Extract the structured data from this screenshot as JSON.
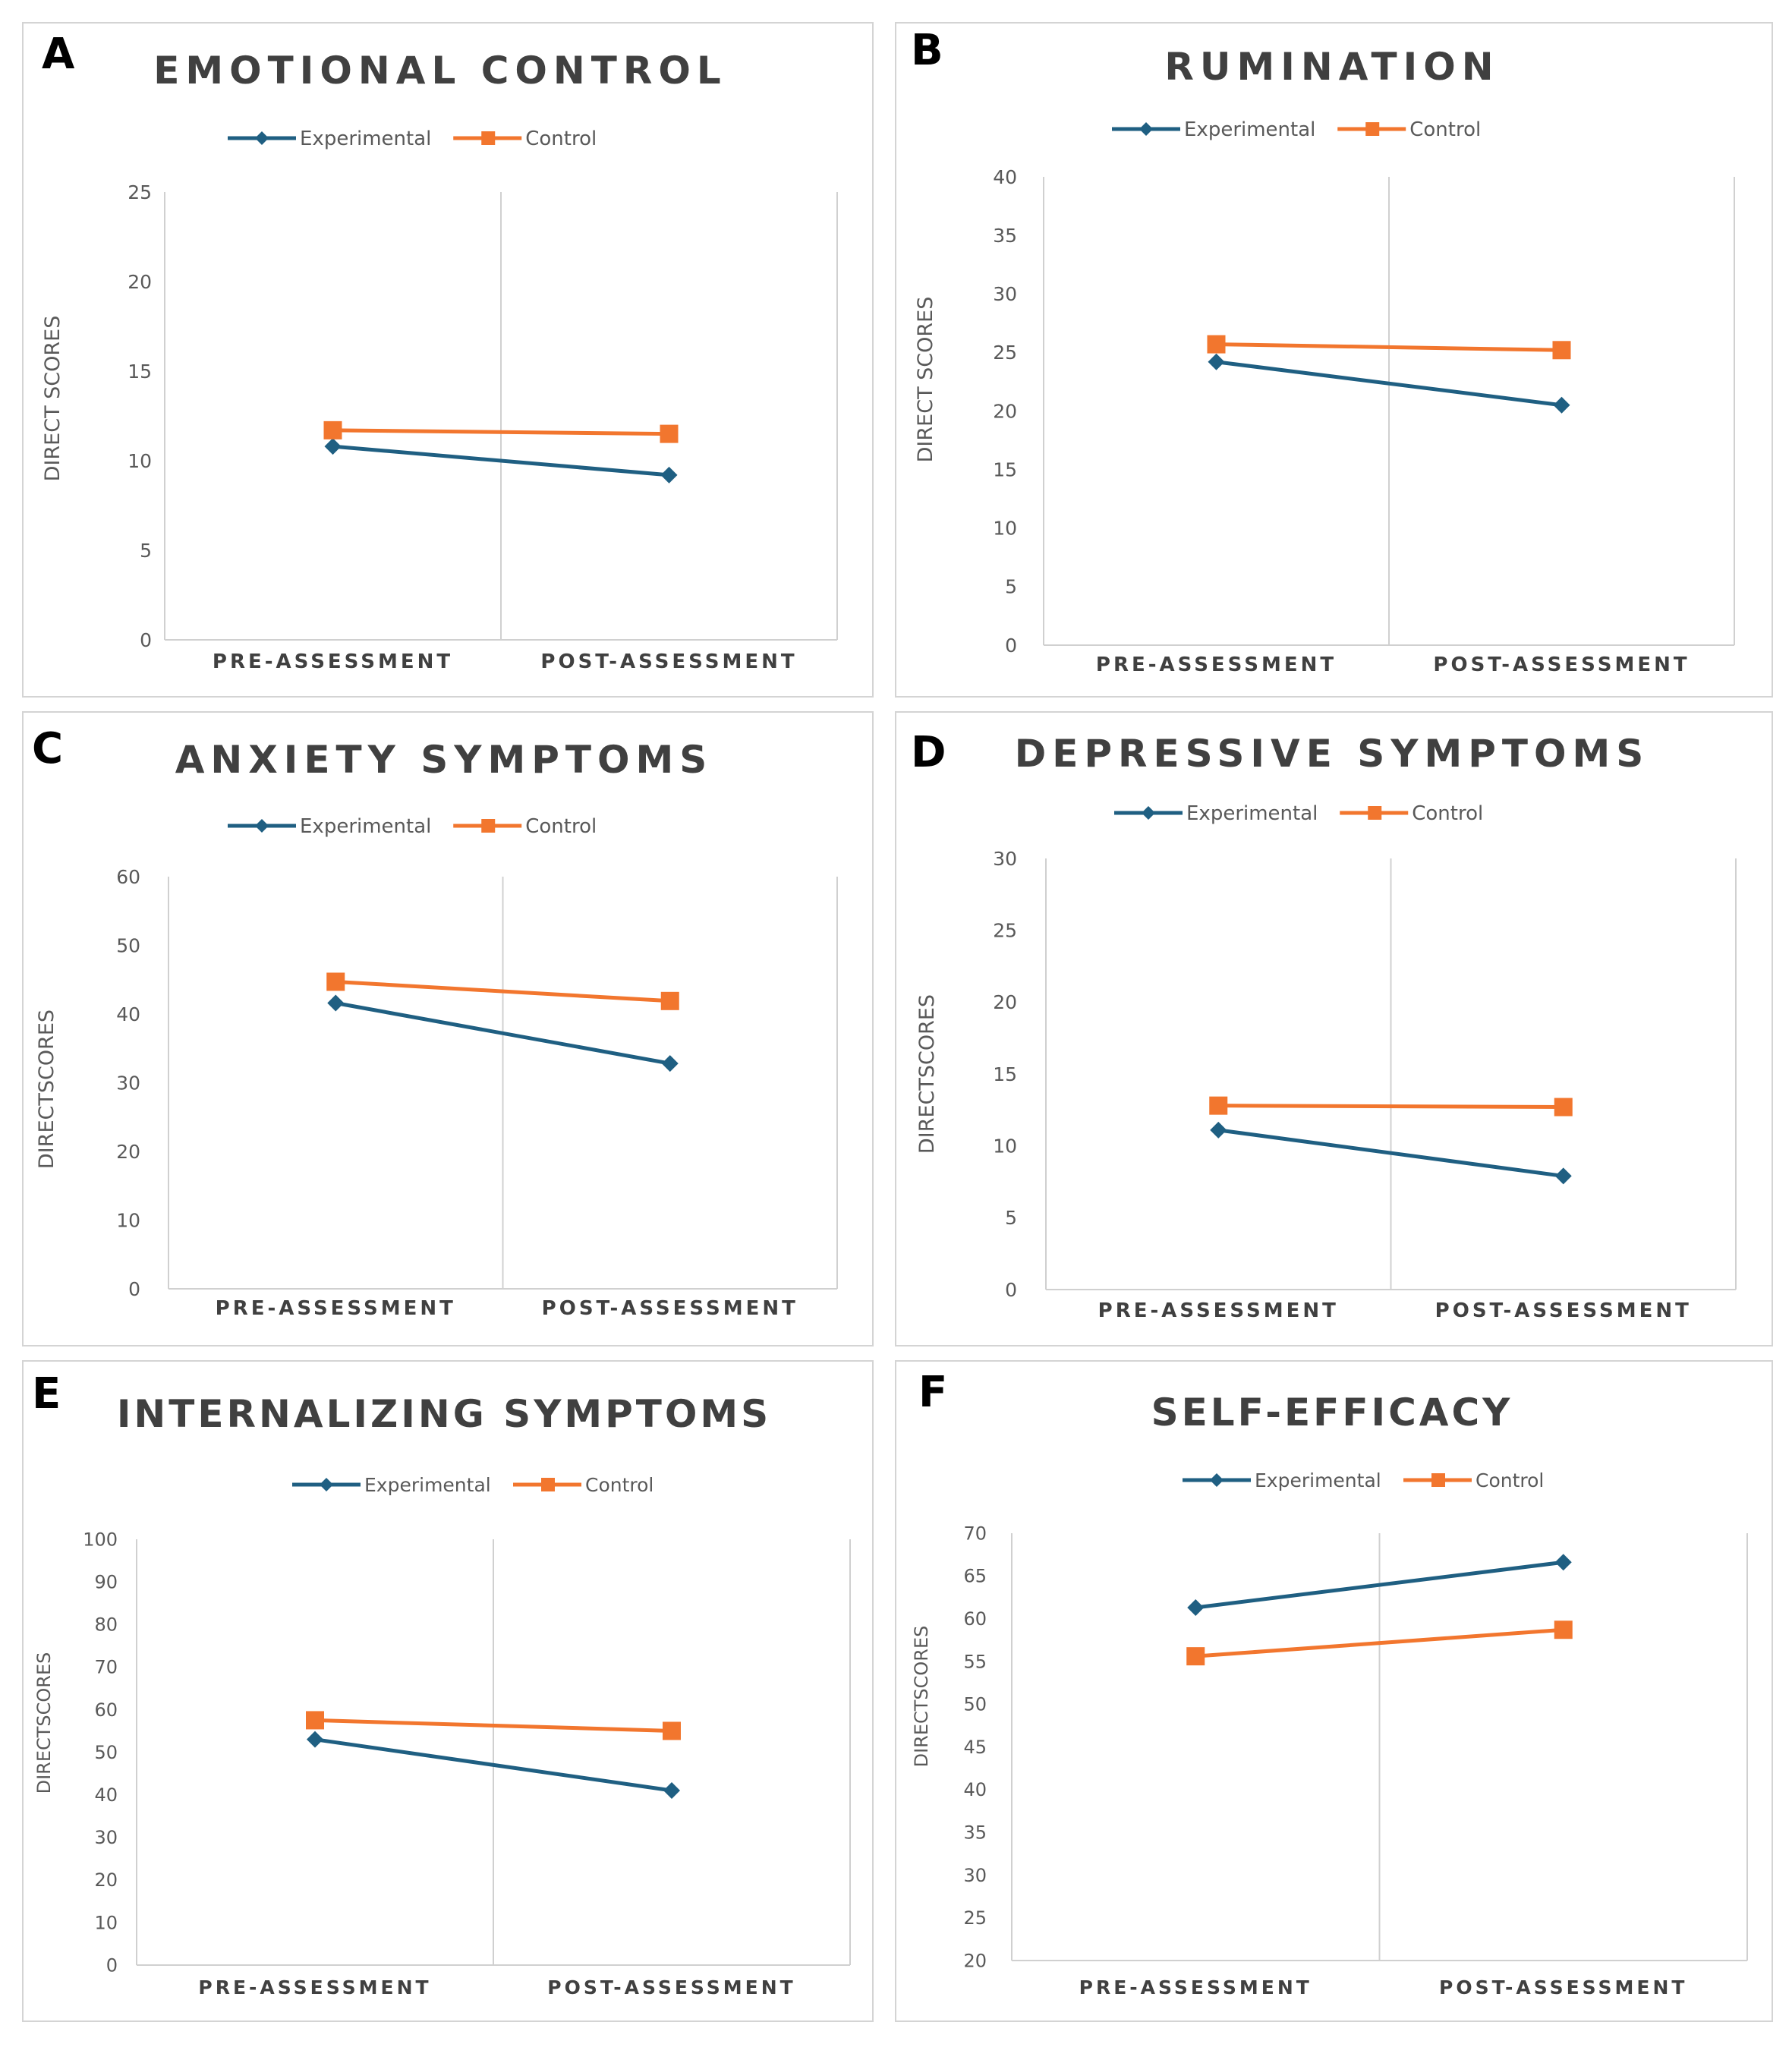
{
  "colors": {
    "experimental": "#1f5f82",
    "control": "#f2762e",
    "text": "#595959",
    "title": "#404040",
    "grid": "#d0d0d0",
    "letter": "#000000"
  },
  "chart_data": [
    {
      "type": "line",
      "letter": "A",
      "title": "EMOTIONAL CONTROL",
      "categories": [
        "PRE-ASSESSMENT",
        "POST-ASSESSMENT"
      ],
      "ylabel": "DIRECT SCORES",
      "ylim": [
        0,
        25
      ],
      "yticks": [
        0,
        5,
        10,
        15,
        20,
        25
      ],
      "legend": "top",
      "series": [
        {
          "name": "Experimental",
          "values": [
            10.8,
            9.2
          ]
        },
        {
          "name": "Control",
          "values": [
            11.7,
            11.5
          ]
        }
      ]
    },
    {
      "type": "line",
      "letter": "B",
      "title": "RUMINATION",
      "categories": [
        "PRE-ASSESSMENT",
        "POST-ASSESSMENT"
      ],
      "ylabel": "DIRECT SCORES",
      "ylim": [
        0,
        40
      ],
      "yticks": [
        0,
        5,
        10,
        15,
        20,
        25,
        30,
        35,
        40
      ],
      "legend": "top",
      "series": [
        {
          "name": "Experimental",
          "values": [
            24.2,
            20.5
          ]
        },
        {
          "name": "Control",
          "values": [
            25.7,
            25.2
          ]
        }
      ]
    },
    {
      "type": "line",
      "letter": "C",
      "title": "ANXIETY SYMPTOMS",
      "categories": [
        "PRE-ASSESSMENT",
        "POST-ASSESSMENT"
      ],
      "ylabel": "DIRECTSCORES",
      "ylim": [
        0,
        60
      ],
      "yticks": [
        0,
        10,
        20,
        30,
        40,
        50,
        60
      ],
      "legend": "top",
      "series": [
        {
          "name": "Experimental",
          "values": [
            41.6,
            32.8
          ]
        },
        {
          "name": "Control",
          "values": [
            44.7,
            41.9
          ]
        }
      ]
    },
    {
      "type": "line",
      "letter": "D",
      "title": "DEPRESSIVE SYMPTOMS",
      "categories": [
        "PRE-ASSESSMENT",
        "POST-ASSESSMENT"
      ],
      "ylabel": "DIRECTSCORES",
      "ylim": [
        0,
        30
      ],
      "yticks": [
        0,
        5,
        10,
        15,
        20,
        25,
        30
      ],
      "legend": "top",
      "series": [
        {
          "name": "Experimental",
          "values": [
            11.1,
            7.9
          ]
        },
        {
          "name": "Control",
          "values": [
            12.8,
            12.7
          ]
        }
      ]
    },
    {
      "type": "line",
      "letter": "E",
      "title": "INTERNALIZING SYMPTOMS",
      "categories": [
        "PRE-ASSESSMENT",
        "POST-ASSESSMENT"
      ],
      "ylabel": "DIRECTSCORES",
      "ylim": [
        0,
        100
      ],
      "yticks": [
        0,
        10,
        20,
        30,
        40,
        50,
        60,
        70,
        80,
        90,
        100
      ],
      "legend": "top",
      "series": [
        {
          "name": "Experimental",
          "values": [
            53,
            41
          ]
        },
        {
          "name": "Control",
          "values": [
            57.5,
            55
          ]
        }
      ]
    },
    {
      "type": "line",
      "letter": "F",
      "title": "SELF-EFFICACY",
      "categories": [
        "PRE-ASSESSMENT",
        "POST-ASSESSMENT"
      ],
      "ylabel": "DIRECTSCORES",
      "ylim": [
        20,
        70
      ],
      "yticks": [
        20,
        25,
        30,
        35,
        40,
        45,
        50,
        55,
        60,
        65,
        70
      ],
      "legend": "top",
      "series": [
        {
          "name": "Experimental",
          "values": [
            61.3,
            66.6
          ]
        },
        {
          "name": "Control",
          "values": [
            55.6,
            58.7
          ]
        }
      ]
    }
  ]
}
